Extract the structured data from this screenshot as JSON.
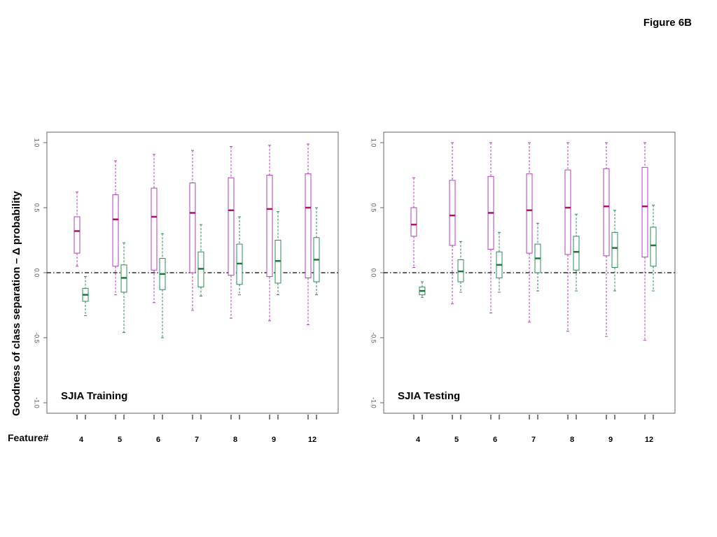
{
  "figure_label": "Figure 6B",
  "ylabel": "Goodness of class separation – Δ probability",
  "xlabel": "Feature#",
  "colors": {
    "series_a": "#b040b8",
    "series_a_median": "#b0106a",
    "series_b": "#2e8b57",
    "series_b_median": "#1f7a3a",
    "reference_line": "#000000",
    "frame": "#666666"
  },
  "chart_data": [
    {
      "type": "boxplot",
      "title": "SJIA Training",
      "categories": [
        "4",
        "5",
        "6",
        "7",
        "8",
        "9",
        "12"
      ],
      "ylim": [
        -1.0,
        1.0
      ],
      "yticks": [
        1.0,
        0.5,
        0.0,
        -0.5,
        -1.0
      ],
      "ytick_labels": [
        "1.0",
        "0.5",
        "0.0",
        "-0.5",
        "-1.0"
      ],
      "reference_line": 0.0,
      "series": [
        {
          "color": "magenta",
          "boxes": [
            {
              "whisker_low": 0.05,
              "q1": 0.15,
              "median": 0.32,
              "q3": 0.43,
              "whisker_high": 0.62
            },
            {
              "whisker_low": -0.17,
              "q1": 0.05,
              "median": 0.41,
              "q3": 0.6,
              "whisker_high": 0.86
            },
            {
              "whisker_low": -0.23,
              "q1": 0.02,
              "median": 0.43,
              "q3": 0.65,
              "whisker_high": 0.91
            },
            {
              "whisker_low": -0.29,
              "q1": 0.0,
              "median": 0.46,
              "q3": 0.69,
              "whisker_high": 0.94
            },
            {
              "whisker_low": -0.35,
              "q1": -0.02,
              "median": 0.48,
              "q3": 0.73,
              "whisker_high": 0.97
            },
            {
              "whisker_low": -0.37,
              "q1": -0.03,
              "median": 0.49,
              "q3": 0.75,
              "whisker_high": 0.98
            },
            {
              "whisker_low": -0.4,
              "q1": -0.04,
              "median": 0.5,
              "q3": 0.76,
              "whisker_high": 0.99
            }
          ]
        },
        {
          "color": "green",
          "boxes": [
            {
              "whisker_low": -0.33,
              "q1": -0.22,
              "median": -0.17,
              "q3": -0.12,
              "whisker_high": -0.03
            },
            {
              "whisker_low": -0.46,
              "q1": -0.15,
              "median": -0.04,
              "q3": 0.06,
              "whisker_high": 0.23
            },
            {
              "whisker_low": -0.5,
              "q1": -0.13,
              "median": -0.01,
              "q3": 0.11,
              "whisker_high": 0.3
            },
            {
              "whisker_low": -0.18,
              "q1": -0.11,
              "median": 0.03,
              "q3": 0.16,
              "whisker_high": 0.37
            },
            {
              "whisker_low": -0.17,
              "q1": -0.09,
              "median": 0.07,
              "q3": 0.22,
              "whisker_high": 0.43
            },
            {
              "whisker_low": -0.17,
              "q1": -0.08,
              "median": 0.09,
              "q3": 0.25,
              "whisker_high": 0.47
            },
            {
              "whisker_low": -0.17,
              "q1": -0.07,
              "median": 0.1,
              "q3": 0.27,
              "whisker_high": 0.5
            }
          ]
        }
      ]
    },
    {
      "type": "boxplot",
      "title": "SJIA Testing",
      "categories": [
        "4",
        "5",
        "6",
        "7",
        "8",
        "9",
        "12"
      ],
      "ylim": [
        -1.0,
        1.0
      ],
      "yticks": [
        1.0,
        0.5,
        0.0,
        -0.5,
        -1.0
      ],
      "ytick_labels": [
        "1.0",
        "0.5",
        "0.0",
        "-0.5",
        "-1.0"
      ],
      "reference_line": 0.0,
      "series": [
        {
          "color": "magenta",
          "boxes": [
            {
              "whisker_low": 0.04,
              "q1": 0.28,
              "median": 0.37,
              "q3": 0.5,
              "whisker_high": 0.73
            },
            {
              "whisker_low": -0.24,
              "q1": 0.21,
              "median": 0.44,
              "q3": 0.71,
              "whisker_high": 1.0
            },
            {
              "whisker_low": -0.31,
              "q1": 0.18,
              "median": 0.46,
              "q3": 0.74,
              "whisker_high": 1.0
            },
            {
              "whisker_low": -0.38,
              "q1": 0.15,
              "median": 0.48,
              "q3": 0.76,
              "whisker_high": 1.0
            },
            {
              "whisker_low": -0.45,
              "q1": 0.14,
              "median": 0.5,
              "q3": 0.79,
              "whisker_high": 1.0
            },
            {
              "whisker_low": -0.49,
              "q1": 0.13,
              "median": 0.51,
              "q3": 0.8,
              "whisker_high": 1.0
            },
            {
              "whisker_low": -0.52,
              "q1": 0.12,
              "median": 0.51,
              "q3": 0.81,
              "whisker_high": 1.0
            }
          ]
        },
        {
          "color": "green",
          "boxes": [
            {
              "whisker_low": -0.19,
              "q1": -0.17,
              "median": -0.14,
              "q3": -0.11,
              "whisker_high": -0.07
            },
            {
              "whisker_low": -0.15,
              "q1": -0.07,
              "median": 0.01,
              "q3": 0.1,
              "whisker_high": 0.24
            },
            {
              "whisker_low": -0.15,
              "q1": -0.04,
              "median": 0.06,
              "q3": 0.16,
              "whisker_high": 0.31
            },
            {
              "whisker_low": -0.14,
              "q1": 0.0,
              "median": 0.11,
              "q3": 0.22,
              "whisker_high": 0.38
            },
            {
              "whisker_low": -0.14,
              "q1": 0.02,
              "median": 0.16,
              "q3": 0.28,
              "whisker_high": 0.45
            },
            {
              "whisker_low": -0.14,
              "q1": 0.04,
              "median": 0.19,
              "q3": 0.31,
              "whisker_high": 0.48
            },
            {
              "whisker_low": -0.14,
              "q1": 0.05,
              "median": 0.21,
              "q3": 0.35,
              "whisker_high": 0.52
            }
          ]
        }
      ]
    }
  ]
}
